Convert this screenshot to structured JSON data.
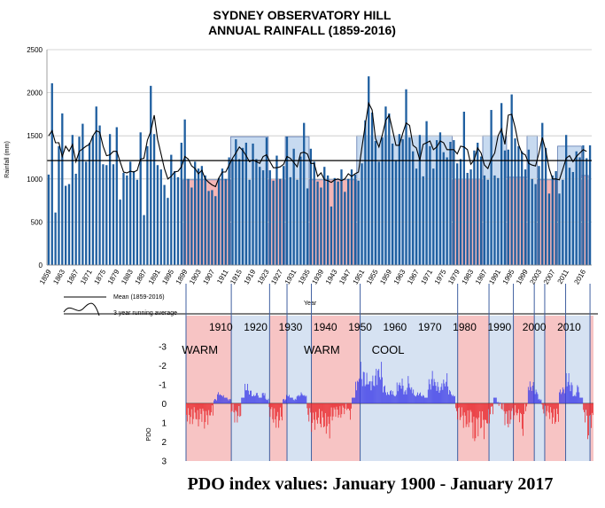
{
  "chart_data": [
    {
      "type": "bar",
      "title_lines": [
        "SYDNEY OBSERVATORY HILL",
        "ANNUAL RAINFALL (1859-2016)"
      ],
      "xlabel": "Year",
      "ylabel": "Rainfall (mm)",
      "ylim": [
        0,
        2500
      ],
      "yticks": [
        "0",
        "500",
        "1000",
        "1500",
        "2000",
        "2500"
      ],
      "x_tick_labels": [
        "1859",
        "1863",
        "1867",
        "1871",
        "1875",
        "1879",
        "1883",
        "1887",
        "1891",
        "1895",
        "1899",
        "1903",
        "1907",
        "1911",
        "1915",
        "1919",
        "1923",
        "1927",
        "1931",
        "1935",
        "1939",
        "1943",
        "1947",
        "1951",
        "1955",
        "1959",
        "1963",
        "1967",
        "1971",
        "1975",
        "1979",
        "1983",
        "1987",
        "1991",
        "1995",
        "1999",
        "2003",
        "2007",
        "2011",
        "2016"
      ],
      "x_start": 1859,
      "mean": 1213,
      "grid": true,
      "bar_color": "#1f5fa0",
      "values": [
        1050,
        2110,
        610,
        1380,
        1760,
        920,
        940,
        1510,
        1060,
        1490,
        1640,
        1200,
        1420,
        1500,
        1840,
        1620,
        1170,
        1160,
        1520,
        1170,
        1600,
        760,
        1070,
        1040,
        1200,
        1090,
        990,
        1540,
        580,
        1380,
        2080,
        1520,
        1160,
        1110,
        930,
        780,
        1280,
        1090,
        1020,
        1420,
        1690,
        1000,
        900,
        1200,
        1120,
        1150,
        1040,
        860,
        870,
        800,
        1010,
        1120,
        1000,
        1250,
        1230,
        1460,
        1230,
        1360,
        1420,
        990,
        1410,
        1230,
        1140,
        1100,
        1480,
        1100,
        980,
        1270,
        1000,
        1150,
        1490,
        1020,
        1350,
        990,
        1260,
        1650,
        890,
        1350,
        1200,
        970,
        900,
        1140,
        1040,
        680,
        1010,
        970,
        1110,
        850,
        1000,
        1110,
        1050,
        980,
        1180,
        1680,
        2190,
        1770,
        1440,
        1200,
        1480,
        1840,
        1760,
        1410,
        1220,
        1520,
        1460,
        2040,
        1480,
        1320,
        1120,
        1510,
        1030,
        1670,
        1380,
        1120,
        1450,
        1540,
        1310,
        1250,
        1430,
        1450,
        1180,
        1230,
        1780,
        1070,
        1110,
        1330,
        1420,
        1260,
        1040,
        990,
        1800,
        1040,
        1010,
        1880,
        1330,
        1340,
        1980,
        1470,
        1380,
        1320,
        1110,
        1340,
        1000,
        940,
        1150,
        1650,
        1360,
        830,
        1040,
        1090,
        830,
        990,
        1510,
        1130,
        1080,
        1320,
        1250,
        1390,
        1240,
        1390
      ],
      "running_average": [
        1500,
        1560,
        1420,
        1420,
        1260,
        1380,
        1320,
        1400,
        1200,
        1320,
        1350,
        1380,
        1400,
        1500,
        1560,
        1540,
        1380,
        1270,
        1280,
        1320,
        1320,
        1200,
        1080,
        1070,
        1090,
        1080,
        1100,
        1230,
        1240,
        1450,
        1550,
        1740,
        1460,
        1290,
        1120,
        1000,
        1030,
        1080,
        1090,
        1140,
        1260,
        1230,
        1150,
        1120,
        1060,
        1100,
        1000,
        960,
        930,
        910,
        1010,
        1080,
        1080,
        1160,
        1240,
        1300,
        1370,
        1330,
        1270,
        1200,
        1220,
        1200,
        1180,
        1260,
        1280,
        1200,
        1130,
        1130,
        1140,
        1170,
        1260,
        1240,
        1190,
        1140,
        1300,
        1310,
        1290,
        1180,
        1180,
        1030,
        1070,
        990,
        980,
        960,
        990,
        1000,
        980,
        1000,
        1060,
        1030,
        1060,
        1080,
        1360,
        1630,
        1880,
        1800,
        1470,
        1370,
        1510,
        1680,
        1740,
        1570,
        1390,
        1390,
        1530,
        1650,
        1620,
        1390,
        1360,
        1220,
        1400,
        1420,
        1440,
        1340,
        1370,
        1440,
        1420,
        1340,
        1340,
        1340,
        1290,
        1380,
        1370,
        1340,
        1170,
        1220,
        1360,
        1300,
        1160,
        1120,
        1230,
        1300,
        1500,
        1580,
        1400,
        1740,
        1750,
        1600,
        1400,
        1300,
        1280,
        1180,
        1160,
        1150,
        1300,
        1480,
        1330,
        1120,
        1000,
        1000,
        990,
        1110,
        1240,
        1270,
        1200,
        1260,
        1300,
        1340,
        1320
      ],
      "phase_bands": [
        {
          "kind": "warm",
          "start": 1899,
          "end": 1913,
          "avg": 990
        },
        {
          "kind": "cool",
          "start": 1913,
          "end": 1924,
          "avg": 1490
        },
        {
          "kind": "warm",
          "start": 1924,
          "end": 1929,
          "avg": 1000
        },
        {
          "kind": "cool",
          "start": 1929,
          "end": 1936,
          "avg": 1490
        },
        {
          "kind": "warm",
          "start": 1936,
          "end": 1950,
          "avg": 990
        },
        {
          "kind": "cool",
          "start": 1950,
          "end": 1978,
          "avg": 1500
        },
        {
          "kind": "warm",
          "start": 1978,
          "end": 1987,
          "avg": 1000
        },
        {
          "kind": "cool",
          "start": 1987,
          "end": 1994,
          "avg": 1500
        },
        {
          "kind": "warm",
          "start": 1994,
          "end": 2000,
          "avg": 1020
        },
        {
          "kind": "cool",
          "start": 2000,
          "end": 2003,
          "avg": 1500
        },
        {
          "kind": "warm",
          "start": 2003,
          "end": 2009,
          "avg": 990
        },
        {
          "kind": "cool",
          "start": 2009,
          "end": 2016,
          "avg": 1380
        },
        {
          "kind": "warm",
          "start": 2016,
          "end": 2018,
          "avg": 1040
        }
      ],
      "legend": [
        {
          "name": "Mean (1859-2016)",
          "style": "line"
        },
        {
          "name": "3 year running average",
          "style": "wave"
        }
      ],
      "colors": {
        "warm": "#f4b6b6",
        "cool": "#c7daf0",
        "mean": "#000000",
        "running": "#000000"
      }
    },
    {
      "type": "area",
      "title": "PDO index values: January 1900 - January 2017",
      "ylabel": "PDO",
      "ylim": [
        3,
        -3
      ],
      "yticks": [
        "-3",
        "-2",
        "-1",
        "0",
        "1",
        "2",
        "3"
      ],
      "decade_labels": [
        "1910",
        "1920",
        "1930",
        "1940",
        "1950",
        "1960",
        "1970",
        "1980",
        "1990",
        "2000",
        "2010"
      ],
      "phase_labels": [
        {
          "text": "WARM",
          "year": 1904
        },
        {
          "text": "WARM",
          "year": 1939
        },
        {
          "text": "COOL",
          "year": 1958
        }
      ],
      "yearly_pdo": [
        0.6,
        0.7,
        0.5,
        0.8,
        0.6,
        0.9,
        0.7,
        0.4,
        -0.2,
        -0.5,
        -0.4,
        -0.3,
        -0.2,
        0.3,
        0.6,
        0.5,
        -0.3,
        -0.8,
        -0.6,
        -0.4,
        -0.5,
        -0.3,
        -0.5,
        -0.2,
        0.4,
        0.7,
        0.8,
        0.6,
        -0.2,
        -0.4,
        -0.3,
        -0.2,
        -0.4,
        -0.5,
        -0.4,
        0.6,
        1.0,
        0.9,
        0.7,
        0.8,
        1.1,
        1.2,
        0.6,
        0.4,
        0.5,
        0.3,
        0.2,
        0.5,
        -0.3,
        -1.0,
        -1.6,
        -1.4,
        -1.2,
        -1.0,
        -1.1,
        -1.5,
        -1.6,
        -0.8,
        -0.5,
        -0.6,
        -0.4,
        -0.9,
        -1.0,
        -0.6,
        -1.1,
        -0.7,
        -0.4,
        -0.5,
        -0.4,
        -0.3,
        -1.0,
        -1.3,
        -0.9,
        -0.7,
        -1.0,
        -1.2,
        -0.6,
        -0.4,
        0.5,
        0.6,
        0.8,
        0.9,
        0.6,
        1.5,
        1.1,
        1.0,
        1.2,
        0.8,
        0.3,
        -0.3,
        0.0,
        0.2,
        0.7,
        0.9,
        0.5,
        0.4,
        0.6,
        1.2,
        0.2,
        -0.9,
        -0.9,
        -0.6,
        -0.2,
        0.3,
        0.4,
        0.5,
        0.7,
        0.6,
        -0.6,
        -0.7,
        -1.2,
        -0.9,
        -0.4,
        -0.8,
        -0.3,
        0.6,
        1.4,
        0.8
      ],
      "colors": {
        "positive": "#e8262b",
        "negative": "#3e3ee8",
        "warm": "#f7c4c4",
        "cool": "#d6e2f2"
      }
    }
  ]
}
